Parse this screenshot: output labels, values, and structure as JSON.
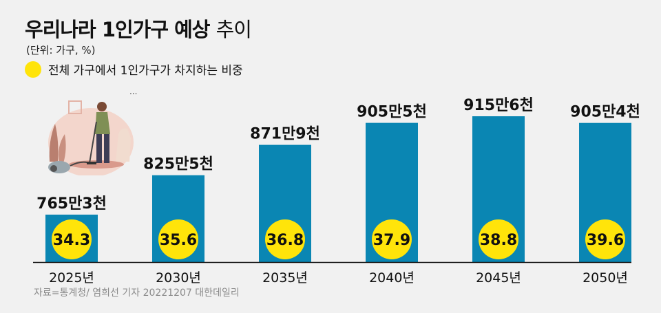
{
  "title_bold": "우리나라 1인가구 예상",
  "title_light": "추이",
  "unit": "(단위: 가구, %)",
  "legend_label": "전체 가구에서 1인가구가 차지하는 비중",
  "credit": "자료=통계청/ 염희선 기자 20221207 대한데일리",
  "colors": {
    "bar": "#0a86b3",
    "circle": "#ffe40a",
    "axis": "#111111",
    "background": "#f1f1f1"
  },
  "chart_data": {
    "type": "bar",
    "categories": [
      "2025년",
      "2030년",
      "2035년",
      "2040년",
      "2045년",
      "2050년"
    ],
    "series": [
      {
        "values": [
          765.3,
          825.5,
          871.9,
          905.5,
          915.6,
          905.4
        ],
        "labels": [
          "765만3천",
          "825만5천",
          "871만9천",
          "905만5천",
          "915만6천",
          "905만4천"
        ]
      },
      {
        "values": [
          34.3,
          35.6,
          36.8,
          37.9,
          38.8,
          39.6
        ]
      }
    ],
    "grid": false,
    "legend_position": "top-left"
  }
}
